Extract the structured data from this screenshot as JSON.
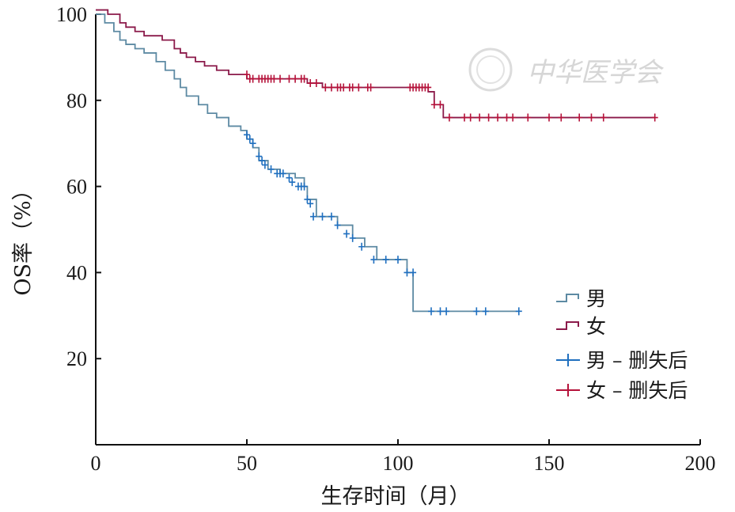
{
  "watermark": "中华医学会",
  "chart_data": {
    "type": "line",
    "step": true,
    "title": "",
    "xlabel": "生存时间（月）",
    "ylabel": "OS率（%）",
    "xlim": [
      0,
      200
    ],
    "ylim": [
      0,
      100
    ],
    "xticks": [
      0,
      50,
      100,
      150,
      200
    ],
    "yticks": [
      20,
      40,
      60,
      80,
      100
    ],
    "grid": false,
    "legend_position": "lower-right",
    "legend": [
      "男",
      "女",
      "男 – 删失后",
      "女 – 删失后"
    ],
    "series": [
      {
        "name": "男",
        "color": "#5d8aa3",
        "censor_color": "#1f6fbf",
        "x": [
          0,
          3,
          6,
          8,
          10,
          13,
          16,
          20,
          23,
          26,
          28,
          30,
          34,
          37,
          40,
          44,
          48,
          50,
          52,
          54,
          57,
          61,
          66,
          69,
          70,
          73,
          78,
          80,
          85,
          89,
          93,
          100,
          103,
          105,
          108,
          140
        ],
        "y": [
          100,
          98,
          96,
          94,
          93,
          92,
          91,
          89,
          87,
          85,
          83,
          81,
          79,
          77,
          76,
          74,
          73,
          71,
          69,
          66,
          64,
          63,
          62,
          60,
          57,
          53,
          53,
          51,
          48,
          46,
          43,
          43,
          40,
          31,
          31,
          31
        ],
        "censored": [
          [
            50,
            72
          ],
          [
            51,
            71
          ],
          [
            52,
            70
          ],
          [
            54,
            67
          ],
          [
            55,
            66
          ],
          [
            56,
            65
          ],
          [
            58,
            64
          ],
          [
            60,
            63
          ],
          [
            61,
            63
          ],
          [
            62,
            63
          ],
          [
            64,
            62
          ],
          [
            65,
            61
          ],
          [
            67,
            60
          ],
          [
            68,
            60
          ],
          [
            69,
            60
          ],
          [
            70,
            57
          ],
          [
            71,
            56
          ],
          [
            72,
            53
          ],
          [
            75,
            53
          ],
          [
            78,
            53
          ],
          [
            80,
            51
          ],
          [
            83,
            49
          ],
          [
            85,
            48
          ],
          [
            88,
            46
          ],
          [
            92,
            43
          ],
          [
            96,
            43
          ],
          [
            100,
            43
          ],
          [
            103,
            40
          ],
          [
            105,
            40
          ],
          [
            111,
            31
          ],
          [
            114,
            31
          ],
          [
            116,
            31
          ],
          [
            126,
            31
          ],
          [
            129,
            31
          ],
          [
            140,
            31
          ]
        ]
      },
      {
        "name": "女",
        "color": "#8b1a4a",
        "censor_color": "#b5123a",
        "x": [
          0,
          4,
          8,
          10,
          13,
          16,
          22,
          26,
          28,
          30,
          33,
          36,
          40,
          44,
          50,
          55,
          70,
          75,
          110,
          112,
          115,
          185
        ],
        "y": [
          101,
          100,
          98,
          97,
          96,
          95,
          94,
          92,
          91,
          90,
          89,
          88,
          87,
          86,
          85,
          85,
          84,
          83,
          82,
          79,
          76,
          76
        ],
        "censored": [
          [
            50,
            86
          ],
          [
            51,
            85
          ],
          [
            52,
            85
          ],
          [
            54,
            85
          ],
          [
            55,
            85
          ],
          [
            56,
            85
          ],
          [
            57,
            85
          ],
          [
            58,
            85
          ],
          [
            59,
            85
          ],
          [
            61,
            85
          ],
          [
            64,
            85
          ],
          [
            66,
            85
          ],
          [
            68,
            85
          ],
          [
            69,
            85
          ],
          [
            71,
            84
          ],
          [
            73,
            84
          ],
          [
            76,
            83
          ],
          [
            78,
            83
          ],
          [
            80,
            83
          ],
          [
            81,
            83
          ],
          [
            82,
            83
          ],
          [
            84,
            83
          ],
          [
            85,
            83
          ],
          [
            87,
            83
          ],
          [
            90,
            83
          ],
          [
            91,
            83
          ],
          [
            104,
            83
          ],
          [
            105,
            83
          ],
          [
            106,
            83
          ],
          [
            107,
            83
          ],
          [
            108,
            83
          ],
          [
            109,
            83
          ],
          [
            110,
            83
          ],
          [
            112,
            79
          ],
          [
            114,
            79
          ],
          [
            117,
            76
          ],
          [
            122,
            76
          ],
          [
            124,
            76
          ],
          [
            127,
            76
          ],
          [
            130,
            76
          ],
          [
            133,
            76
          ],
          [
            136,
            76
          ],
          [
            138,
            76
          ],
          [
            143,
            76
          ],
          [
            150,
            76
          ],
          [
            154,
            76
          ],
          [
            160,
            76
          ],
          [
            164,
            76
          ],
          [
            168,
            76
          ],
          [
            185,
            76
          ]
        ]
      }
    ]
  }
}
